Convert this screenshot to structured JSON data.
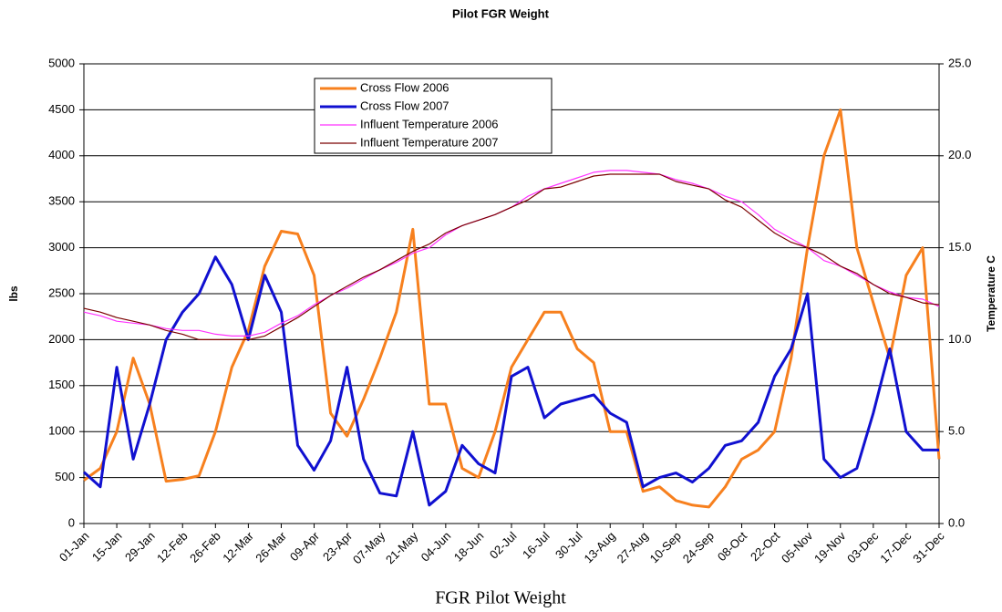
{
  "chart_data": {
    "type": "line",
    "title": "Pilot FGR Weight",
    "xlabel": "FGR Pilot Weight",
    "ylabel": "lbs",
    "y2label": "Temperature C",
    "categories": [
      "01-Jan",
      null,
      "15-Jan",
      null,
      "29-Jan",
      null,
      "12-Feb",
      null,
      "26-Feb",
      null,
      "12-Mar",
      null,
      "26-Mar",
      null,
      "09-Apr",
      null,
      "23-Apr",
      null,
      "07-May",
      null,
      "21-May",
      null,
      "04-Jun",
      null,
      "18-Jun",
      null,
      "02-Jul",
      null,
      "16-Jul",
      null,
      "30-Jul",
      null,
      "13-Aug",
      null,
      "27-Aug",
      null,
      "10-Sep",
      null,
      "24-Sep",
      null,
      "08-Oct",
      null,
      "22-Oct",
      null,
      "05-Nov",
      null,
      "19-Nov",
      null,
      "03-Dec",
      null,
      "17-Dec",
      null,
      "31-Dec"
    ],
    "ylim": [
      0,
      5000
    ],
    "yticks": [
      0,
      500,
      1000,
      1500,
      2000,
      2500,
      3000,
      3500,
      4000,
      4500,
      5000
    ],
    "y2lim": [
      0,
      25
    ],
    "y2ticks": [
      {
        "value": 0,
        "label": "0.0"
      },
      {
        "value": 5,
        "label": "5.0"
      },
      {
        "value": 10,
        "label": "10.0"
      },
      {
        "value": 15,
        "label": "15.0"
      },
      {
        "value": 20,
        "label": "20.0"
      },
      {
        "value": 25,
        "label": "25.0"
      }
    ],
    "grid": true,
    "legend": "upper left",
    "series": [
      {
        "name": "Cross Flow 2006",
        "color": "#f7801e",
        "width": 3,
        "values": [
          470,
          600,
          1000,
          1800,
          1300,
          460,
          480,
          520,
          1000,
          1700,
          2100,
          2800,
          3180,
          3150,
          2700,
          1200,
          950,
          1350,
          1800,
          2300,
          3200,
          1300,
          1300,
          600,
          500,
          1000,
          1700,
          2000,
          2300,
          2300,
          1900,
          1750,
          1000,
          1000,
          350,
          400,
          250,
          200,
          180,
          400,
          700,
          800,
          1000,
          1800,
          3000,
          4000,
          4500,
          3000,
          2400,
          1800,
          2700,
          3000,
          700
        ]
      },
      {
        "name": "Cross Flow 2007",
        "color": "#1010d0",
        "width": 3,
        "values": [
          560,
          400,
          1700,
          700,
          1300,
          2000,
          2300,
          2500,
          2900,
          2600,
          2000,
          2700,
          2300,
          850,
          580,
          900,
          1700,
          700,
          330,
          300,
          1000,
          200,
          350,
          850,
          650,
          550,
          1600,
          1700,
          1150,
          1300,
          1350,
          1400,
          1200,
          1100,
          400,
          500,
          550,
          450,
          600,
          850,
          900,
          1100,
          1600,
          1900,
          2500,
          700,
          500,
          600,
          1200,
          1900,
          1000,
          800,
          800
        ]
      },
      {
        "name": "Influent Temperature 2006",
        "color": "#ff33ff",
        "width": 1.2,
        "axis": "y2",
        "values": [
          11.5,
          11.3,
          11.0,
          10.9,
          10.8,
          10.6,
          10.5,
          10.5,
          10.3,
          10.2,
          10.2,
          10.4,
          10.9,
          11.3,
          11.9,
          12.4,
          12.8,
          13.3,
          13.8,
          14.2,
          14.7,
          15.0,
          15.7,
          16.2,
          16.5,
          16.8,
          17.2,
          17.8,
          18.2,
          18.5,
          18.8,
          19.1,
          19.2,
          19.2,
          19.1,
          19.0,
          18.7,
          18.5,
          18.2,
          17.8,
          17.5,
          16.8,
          16.0,
          15.5,
          15.0,
          14.3,
          14.0,
          13.5,
          13.0,
          12.6,
          12.3,
          12.2,
          11.8
        ]
      },
      {
        "name": "Influent Temperature 2007",
        "color": "#7a0000",
        "width": 1.2,
        "axis": "y2",
        "values": [
          11.7,
          11.5,
          11.2,
          11.0,
          10.8,
          10.5,
          10.3,
          10.0,
          10.0,
          10.0,
          10.0,
          10.2,
          10.7,
          11.2,
          11.8,
          12.4,
          12.9,
          13.4,
          13.8,
          14.3,
          14.8,
          15.2,
          15.8,
          16.2,
          16.5,
          16.8,
          17.2,
          17.6,
          18.2,
          18.3,
          18.6,
          18.9,
          19.0,
          19.0,
          19.0,
          19.0,
          18.6,
          18.4,
          18.2,
          17.6,
          17.2,
          16.5,
          15.8,
          15.3,
          15.0,
          14.6,
          14.0,
          13.6,
          13.0,
          12.5,
          12.3,
          12.0,
          11.9
        ]
      }
    ]
  }
}
